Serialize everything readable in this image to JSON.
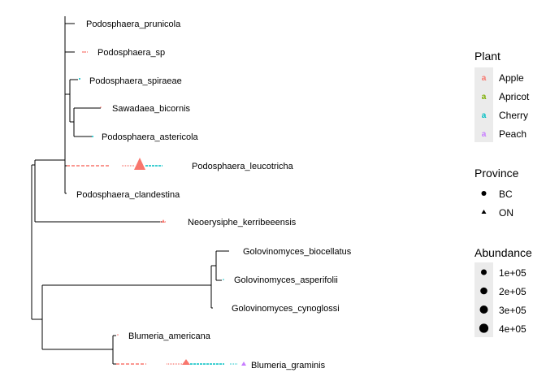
{
  "chart_data": {
    "type": "phylogenetic-tree",
    "tips": [
      "Podosphaera_prunicola",
      "Podosphaera_sp",
      "Podosphaera_spiraeae",
      "Sawadaea_bicornis",
      "Podosphaera_astericola",
      "Podosphaera_leucotricha",
      "Podosphaera_clandestina",
      "Neoerysiphe_kerribeeensis",
      "Golovinomyces_biocellatus",
      "Golovinomyces_asperifolii",
      "Golovinomyces_cynoglossi",
      "Blumeria_americana",
      "Blumeria_graminis"
    ],
    "legends": {
      "plant": {
        "title": "Plant",
        "items": [
          {
            "label": "Apple",
            "color": "#F8766D"
          },
          {
            "label": "Apricot",
            "color": "#7CAE00"
          },
          {
            "label": "Cherry",
            "color": "#00BFC4"
          },
          {
            "label": "Peach",
            "color": "#C77CFF"
          }
        ]
      },
      "province": {
        "title": "Province",
        "items": [
          {
            "label": "BC",
            "shape": "circle"
          },
          {
            "label": "ON",
            "shape": "triangle"
          }
        ]
      },
      "abundance": {
        "title": "Abundance",
        "items": [
          {
            "label": "1e+05",
            "value": 100000
          },
          {
            "label": "2e+05",
            "value": 200000
          },
          {
            "label": "3e+05",
            "value": 300000
          },
          {
            "label": "4e+05",
            "value": 400000
          }
        ]
      }
    },
    "colors": {
      "Apple": "#F8766D",
      "Apricot": "#7CAE00",
      "Cherry": "#00BFC4",
      "Peach": "#C77CFF",
      "legend_key_bg": "#EBEBEB"
    }
  }
}
